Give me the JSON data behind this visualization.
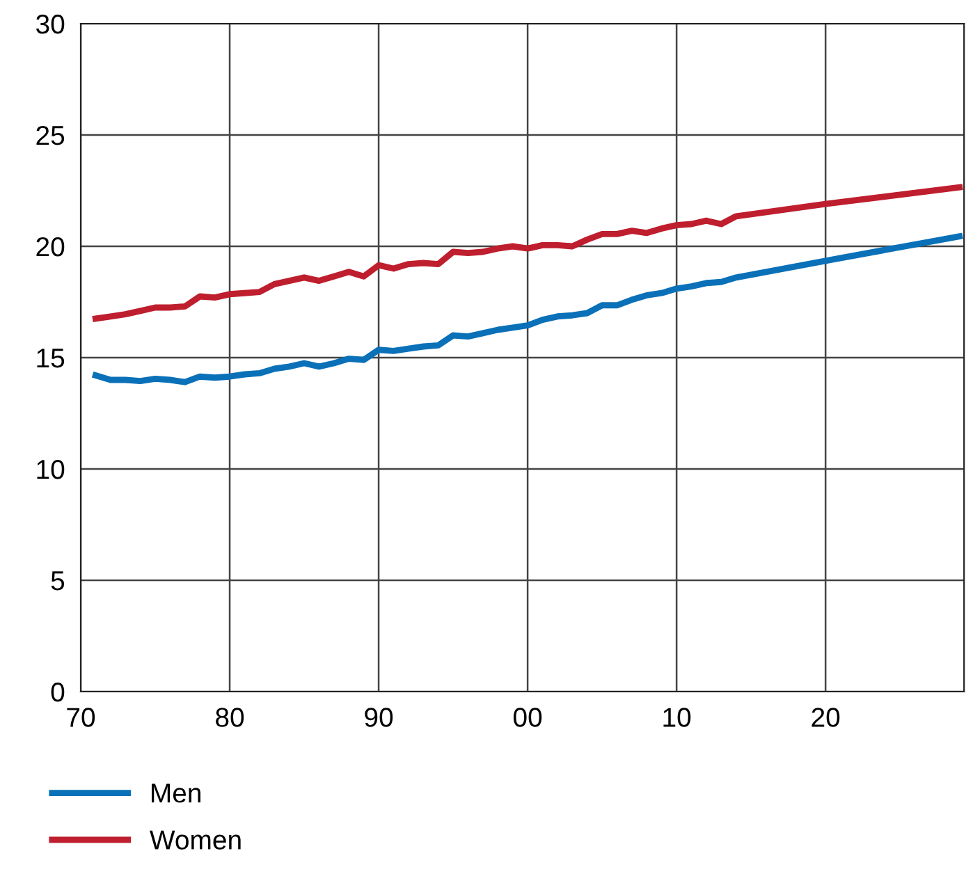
{
  "chart_data": {
    "type": "line",
    "x": [
      1971,
      1972,
      1973,
      1974,
      1975,
      1976,
      1977,
      1978,
      1979,
      1980,
      1981,
      1982,
      1983,
      1984,
      1985,
      1986,
      1987,
      1988,
      1989,
      1990,
      1991,
      1992,
      1993,
      1994,
      1995,
      1996,
      1997,
      1998,
      1999,
      2000,
      2001,
      2002,
      2003,
      2004,
      2005,
      2006,
      2007,
      2008,
      2009,
      2010,
      2011,
      2012,
      2013,
      2014,
      2020,
      2029
    ],
    "series": [
      {
        "name": "Men",
        "color": "#0a70b8",
        "values": [
          14.2,
          14.0,
          14.0,
          13.95,
          14.05,
          14.0,
          13.9,
          14.15,
          14.1,
          14.15,
          14.25,
          14.3,
          14.5,
          14.6,
          14.75,
          14.6,
          14.75,
          14.95,
          14.9,
          15.35,
          15.3,
          15.4,
          15.5,
          15.55,
          16.0,
          15.95,
          16.1,
          16.25,
          16.35,
          16.45,
          16.7,
          16.85,
          16.9,
          17.0,
          17.35,
          17.35,
          17.6,
          17.8,
          17.9,
          18.1,
          18.2,
          18.35,
          18.4,
          18.6,
          19.35,
          20.45
        ]
      },
      {
        "name": "Women",
        "color": "#be1e2d",
        "values": [
          16.75,
          16.85,
          16.95,
          17.1,
          17.25,
          17.25,
          17.3,
          17.75,
          17.7,
          17.85,
          17.9,
          17.95,
          18.3,
          18.45,
          18.6,
          18.45,
          18.65,
          18.85,
          18.65,
          19.15,
          19.0,
          19.2,
          19.25,
          19.2,
          19.75,
          19.7,
          19.75,
          19.9,
          20.0,
          19.9,
          20.05,
          20.05,
          20.0,
          20.3,
          20.55,
          20.55,
          20.7,
          20.6,
          20.8,
          20.95,
          21.0,
          21.15,
          21.0,
          21.35,
          21.9,
          22.65
        ]
      }
    ],
    "xlim": [
      1970,
      2029.3
    ],
    "xticks": [
      {
        "value": 1970,
        "label": "70"
      },
      {
        "value": 1980,
        "label": "80"
      },
      {
        "value": 1990,
        "label": "90"
      },
      {
        "value": 2000,
        "label": "00"
      },
      {
        "value": 2010,
        "label": "10"
      },
      {
        "value": 2020,
        "label": "20"
      }
    ],
    "ylim": [
      0,
      30
    ],
    "yticks": [
      0,
      5,
      10,
      15,
      20,
      25,
      30
    ],
    "grid": true,
    "legend": "bottom left",
    "marker": "none",
    "line_style": "solid"
  }
}
